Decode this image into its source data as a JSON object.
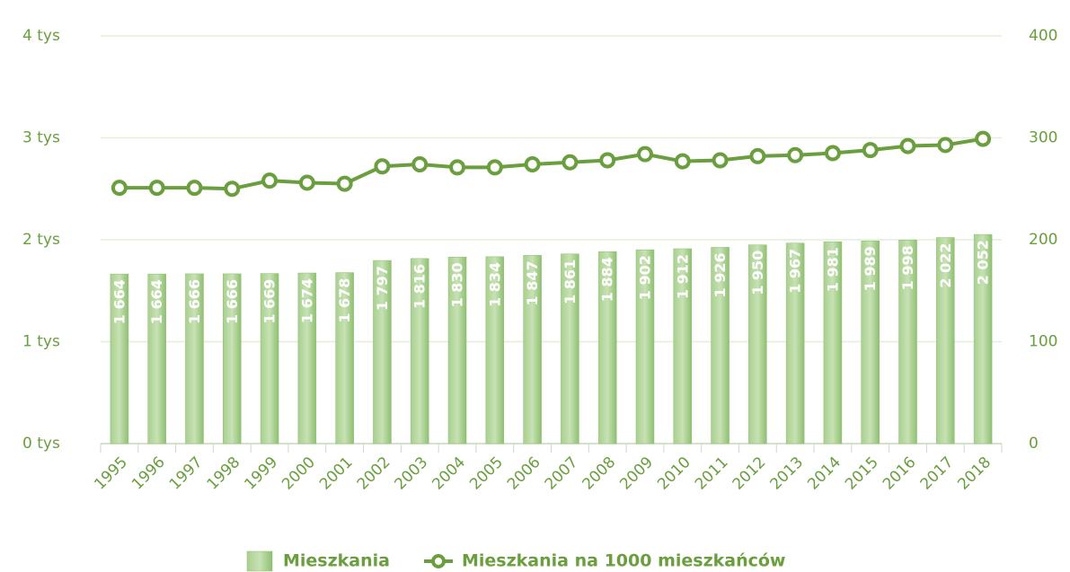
{
  "chart_data": {
    "type": "bar",
    "categories": [
      "1995",
      "1996",
      "1997",
      "1998",
      "1999",
      "2000",
      "2001",
      "2002",
      "2003",
      "2004",
      "2005",
      "2006",
      "2007",
      "2008",
      "2009",
      "2010",
      "2011",
      "2012",
      "2013",
      "2014",
      "2015",
      "2016",
      "2017",
      "2018"
    ],
    "series": [
      {
        "name": "Mieszkania",
        "type": "bar",
        "color": "#8fbf72",
        "values": [
          1664,
          1664,
          1666,
          1666,
          1669,
          1674,
          1678,
          1797,
          1816,
          1830,
          1834,
          1847,
          1861,
          1884,
          1902,
          1912,
          1926,
          1950,
          1967,
          1981,
          1989,
          1998,
          2022,
          2052
        ],
        "value_labels": [
          "1 664",
          "1 664",
          "1 666",
          "1 666",
          "1 669",
          "1 674",
          "1 678",
          "1 797",
          "1 816",
          "1 830",
          "1 834",
          "1 847",
          "1 861",
          "1 884",
          "1 902",
          "1 912",
          "1 926",
          "1 950",
          "1 967",
          "1 981",
          "1 989",
          "1 998",
          "2 022",
          "2 052"
        ]
      },
      {
        "name": "Mieszkania na 1000 mieszkańców",
        "type": "line",
        "axis": "y2",
        "color": "#6a9e3e",
        "values": [
          251,
          251,
          251,
          250,
          258,
          256,
          255,
          272,
          274,
          271,
          271,
          274,
          276,
          278,
          284,
          277,
          278,
          282,
          283,
          285,
          288,
          292,
          293,
          299
        ]
      }
    ],
    "ylim": [
      0,
      4000
    ],
    "yticks": [
      {
        "value": 0,
        "label": "0 tys"
      },
      {
        "value": 1000,
        "label": "1 tys"
      },
      {
        "value": 2000,
        "label": "2 tys"
      },
      {
        "value": 3000,
        "label": "3 tys"
      },
      {
        "value": 4000,
        "label": "4 tys"
      }
    ],
    "y2lim": [
      0,
      400
    ],
    "y2ticks": [
      0,
      100,
      200,
      300,
      400
    ],
    "grid": true
  }
}
